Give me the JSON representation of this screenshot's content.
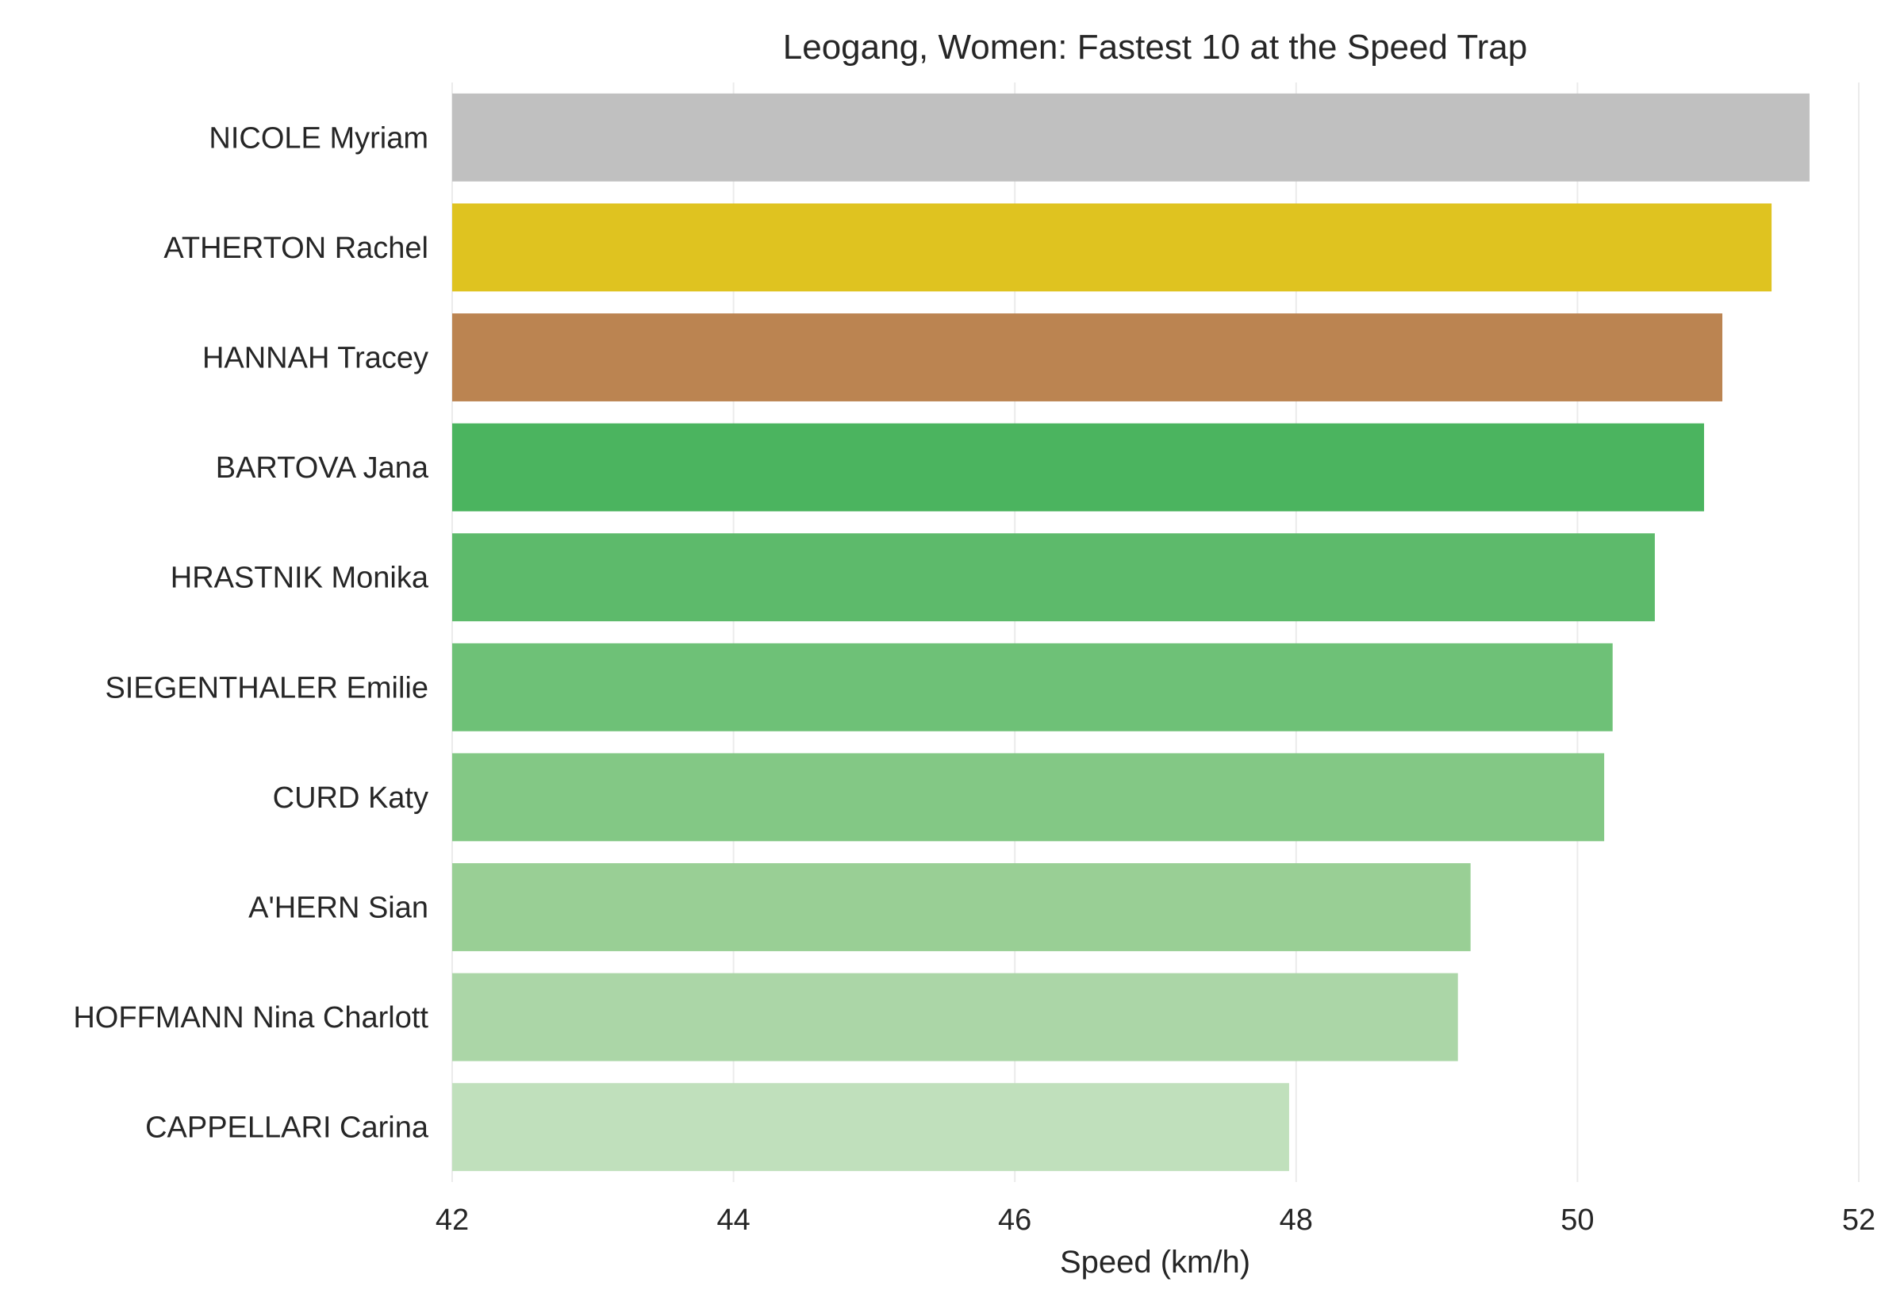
{
  "chart_data": {
    "type": "bar",
    "orientation": "horizontal",
    "title": "Leogang, Women: Fastest 10 at the Speed Trap",
    "xlabel": "Speed (km/h)",
    "ylabel": "",
    "xlim": [
      42,
      52
    ],
    "xticks": [
      42,
      44,
      46,
      48,
      50,
      52
    ],
    "grid": true,
    "categories": [
      "NICOLE Myriam",
      "ATHERTON Rachel",
      "HANNAH Tracey",
      "BARTOVA Jana",
      "HRASTNIK Monika",
      "SIEGENTHALER Emilie",
      "CURD Katy",
      "A'HERN Sian",
      "HOFFMANN Nina Charlott",
      "CAPPELLARI Carina"
    ],
    "values": [
      51.65,
      51.38,
      51.03,
      50.9,
      50.55,
      50.25,
      50.19,
      49.24,
      49.15,
      47.95
    ],
    "colors": [
      "#c0c0c0",
      "#dfc320",
      "#bb8451",
      "#4bb45f",
      "#5dba6b",
      "#6ec177",
      "#83c885",
      "#99cf95",
      "#abd6a7",
      "#c0e0bc"
    ]
  }
}
